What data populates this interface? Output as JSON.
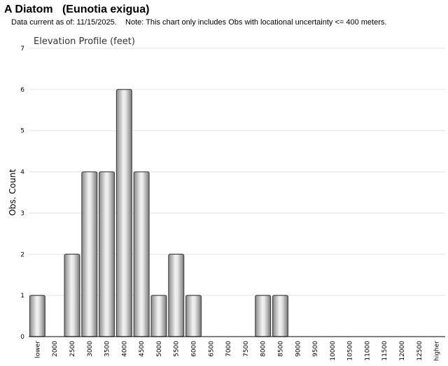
{
  "header": {
    "title": "A Diatom   (Eunotia exigua)",
    "note": "Data current as of: 11/15/2025.    Note: This chart only includes Obs with locational uncertainty <= 400 meters."
  },
  "chart_data": {
    "type": "bar",
    "title": "Elevation Profile (feet)",
    "xlabel": "",
    "ylabel": "Obs. Count",
    "ylim": [
      0,
      7
    ],
    "yticks": [
      0,
      1,
      2,
      3,
      4,
      5,
      6,
      7
    ],
    "grid": true,
    "categories": [
      "lower",
      "2000",
      "2500",
      "3000",
      "3500",
      "4000",
      "4500",
      "5000",
      "5500",
      "6000",
      "6500",
      "7000",
      "7500",
      "8000",
      "8500",
      "9000",
      "9500",
      "10000",
      "10500",
      "11000",
      "11500",
      "12000",
      "12500",
      "higher"
    ],
    "values": [
      1,
      0,
      2,
      4,
      4,
      6,
      4,
      1,
      2,
      1,
      0,
      0,
      0,
      1,
      1,
      0,
      0,
      0,
      0,
      0,
      0,
      0,
      0,
      0
    ],
    "bar_color": "#b0b0b0"
  }
}
